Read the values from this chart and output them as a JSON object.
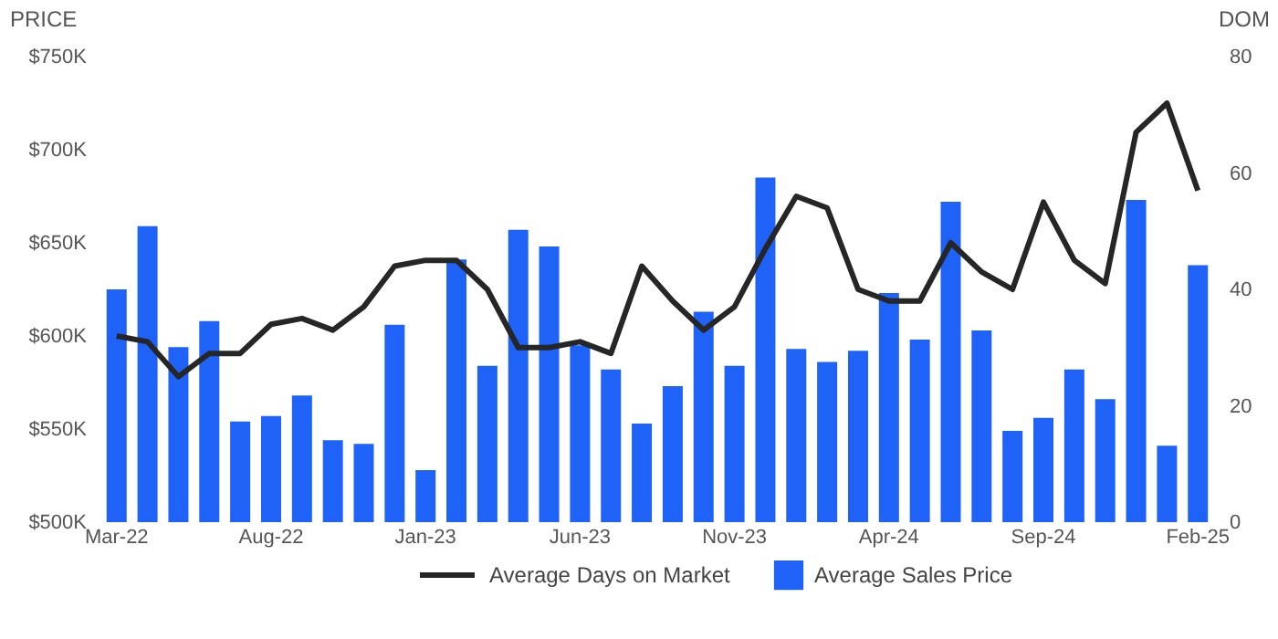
{
  "chart_data": {
    "type": "bar",
    "categories": [
      "Mar-22",
      null,
      null,
      null,
      null,
      "Aug-22",
      null,
      null,
      null,
      null,
      "Jan-23",
      null,
      null,
      null,
      null,
      "Jun-23",
      null,
      null,
      null,
      null,
      "Nov-23",
      null,
      null,
      null,
      null,
      "Apr-24",
      null,
      null,
      null,
      null,
      "Sep-24",
      null,
      null,
      null,
      null,
      "Feb-25"
    ],
    "ylabel": "PRICE",
    "y2label": "DOM",
    "series": [
      {
        "name": "Average Sales Price",
        "color": "#1f62f7",
        "values": [
          625000,
          659000,
          594000,
          608000,
          554000,
          557000,
          568000,
          544000,
          542000,
          606000,
          528000,
          641000,
          584000,
          657000,
          648000,
          595000,
          582000,
          553000,
          573000,
          613000,
          584000,
          685000,
          593000,
          586000,
          592000,
          623000,
          598000,
          672000,
          603000,
          549000,
          556000,
          582000,
          566000,
          673000,
          541000,
          638000
        ]
      },
      {
        "name": "Average Days on Market",
        "type": "line",
        "axis": "y2",
        "color": "#262626",
        "values": [
          32,
          31,
          25,
          29,
          29,
          34,
          35,
          33,
          37,
          44,
          45,
          45,
          40,
          30,
          30,
          31,
          29,
          44,
          38,
          33,
          37,
          47,
          56,
          54,
          40,
          38,
          38,
          48,
          43,
          40,
          55,
          45,
          41,
          67,
          72,
          57
        ]
      }
    ],
    "ylim": [
      500000,
      750000
    ],
    "yticks": [
      {
        "value": 500000,
        "label": "$500K"
      },
      {
        "value": 550000,
        "label": "$550K"
      },
      {
        "value": 600000,
        "label": "$600K"
      },
      {
        "value": 650000,
        "label": "$650K"
      },
      {
        "value": 700000,
        "label": "$700K"
      },
      {
        "value": 750000,
        "label": "$750K"
      }
    ],
    "y2lim": [
      0,
      80
    ],
    "y2ticks": [
      0,
      20,
      40,
      60,
      80
    ],
    "grid": false,
    "legend": "bottom",
    "marker": "none",
    "line_style": "solid"
  }
}
